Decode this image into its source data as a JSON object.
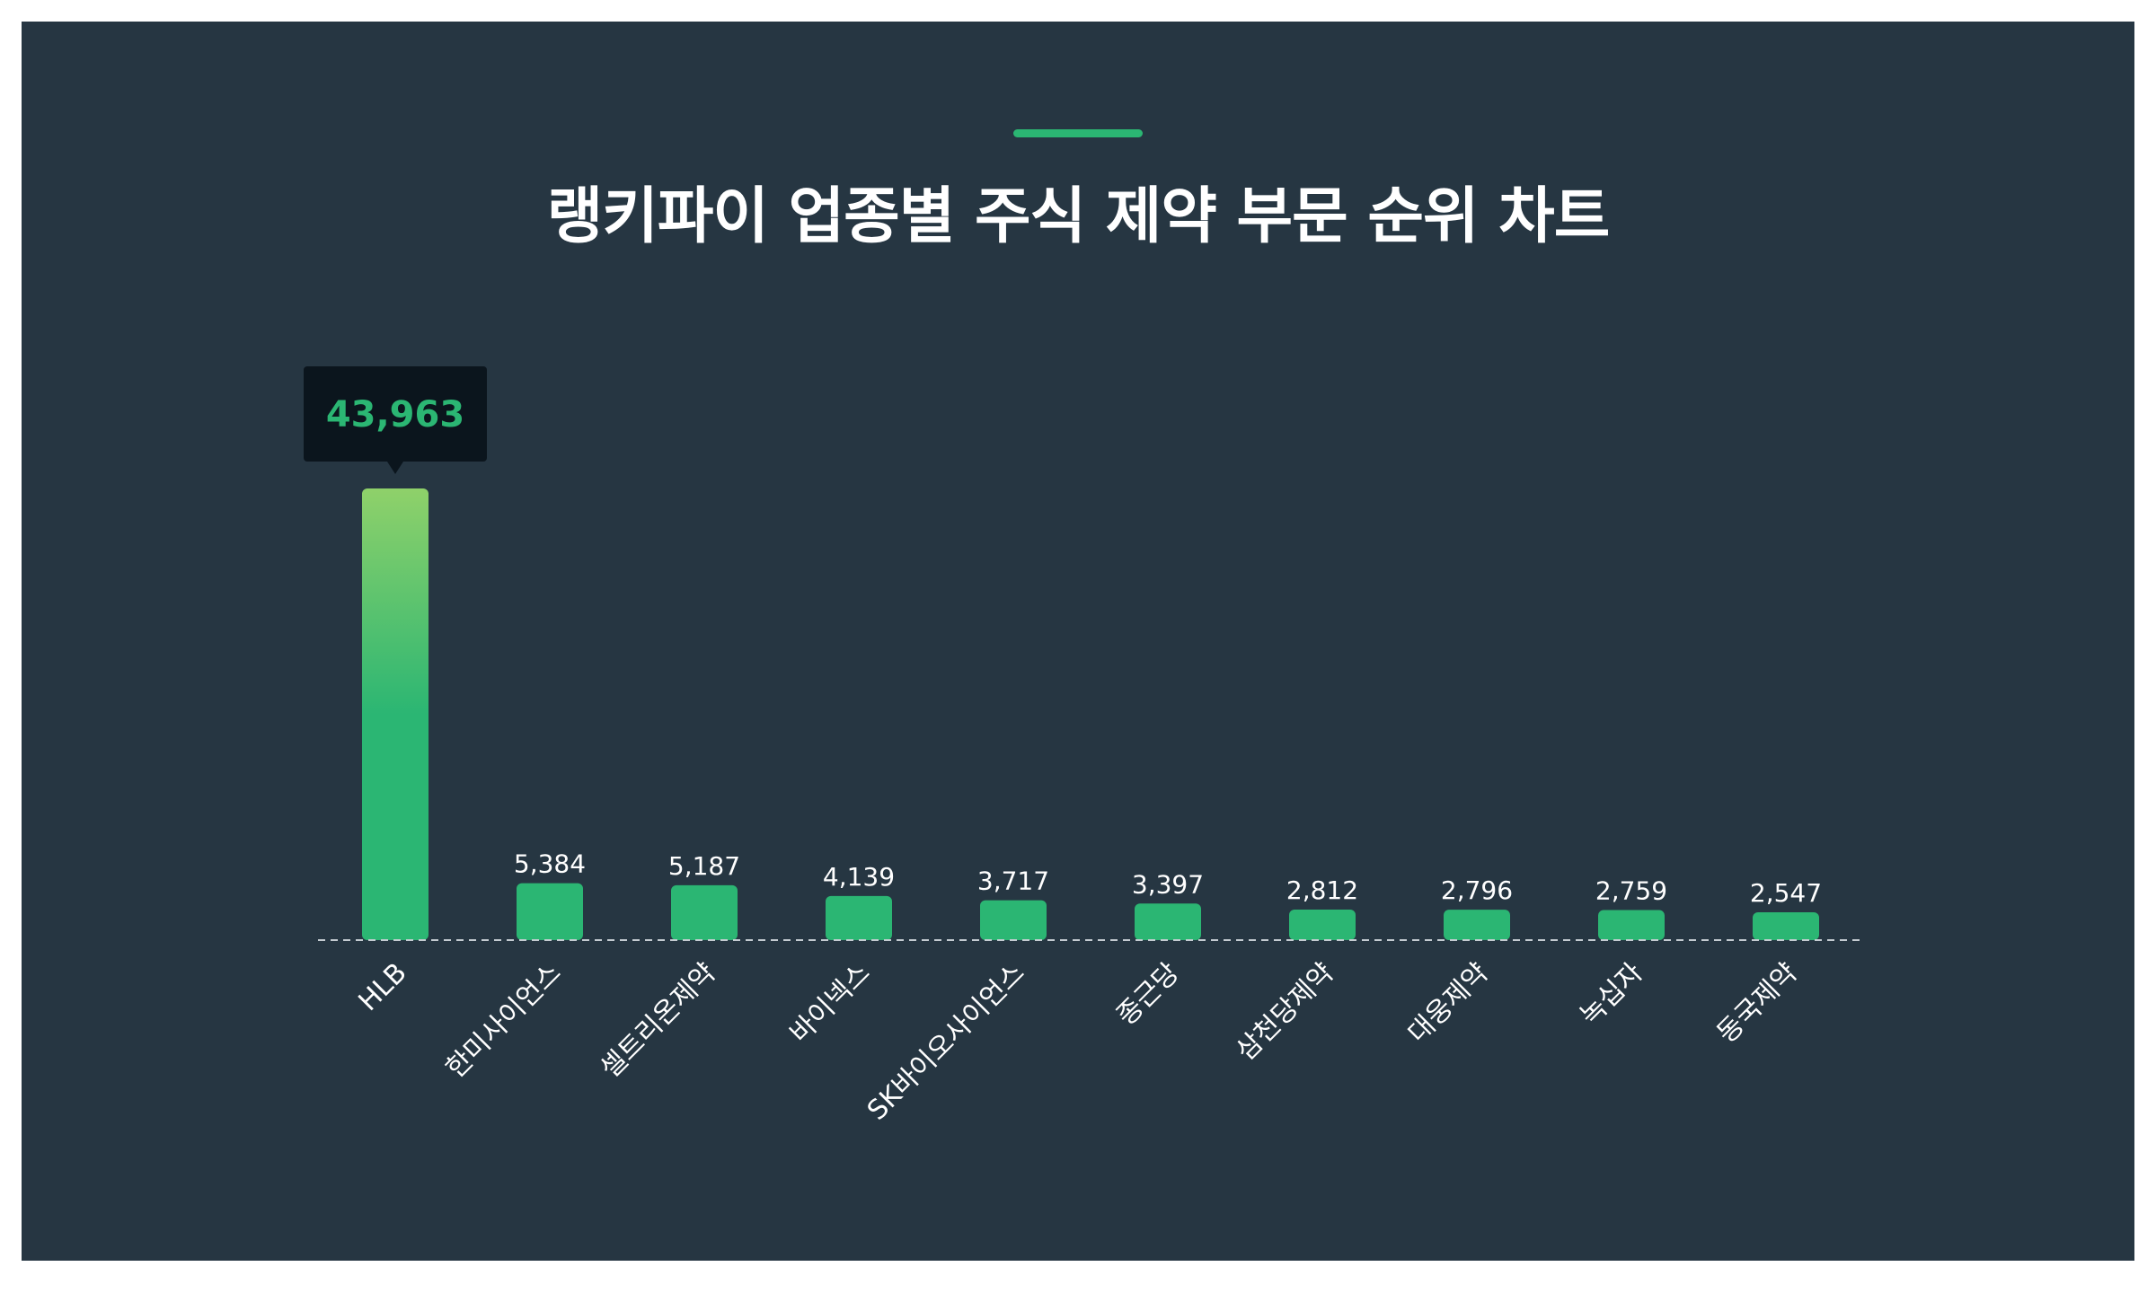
{
  "chart_data": {
    "type": "bar",
    "title": "랭키파이 업종별 주식 제약 부문 순위 차트",
    "categories": [
      "HLB",
      "한미사이언스",
      "셀트리온제약",
      "바이넥스",
      "SK바이오사이언스",
      "종근당",
      "삼천당제약",
      "대웅제약",
      "녹십자",
      "동국제약"
    ],
    "values": [
      43963,
      5384,
      5187,
      4139,
      3717,
      3397,
      2812,
      2796,
      2759,
      2547
    ],
    "value_labels": [
      "43,963",
      "5,384",
      "5,187",
      "4,139",
      "3,717",
      "3,397",
      "2,812",
      "2,796",
      "2,759",
      "2,547"
    ],
    "highlight_index": 0,
    "ylim": [
      0,
      43963
    ],
    "xlabel": "",
    "ylabel": "",
    "grid": false,
    "baseline": "dashed",
    "colors": {
      "background": "#263642",
      "bar": "#2bb673",
      "bar_highlight_top": "#8fd16a",
      "tooltip_bg": "#0b151d",
      "tooltip_text": "#2bb673",
      "label": "#ffffff",
      "baseline": "#c5ccd2"
    }
  }
}
